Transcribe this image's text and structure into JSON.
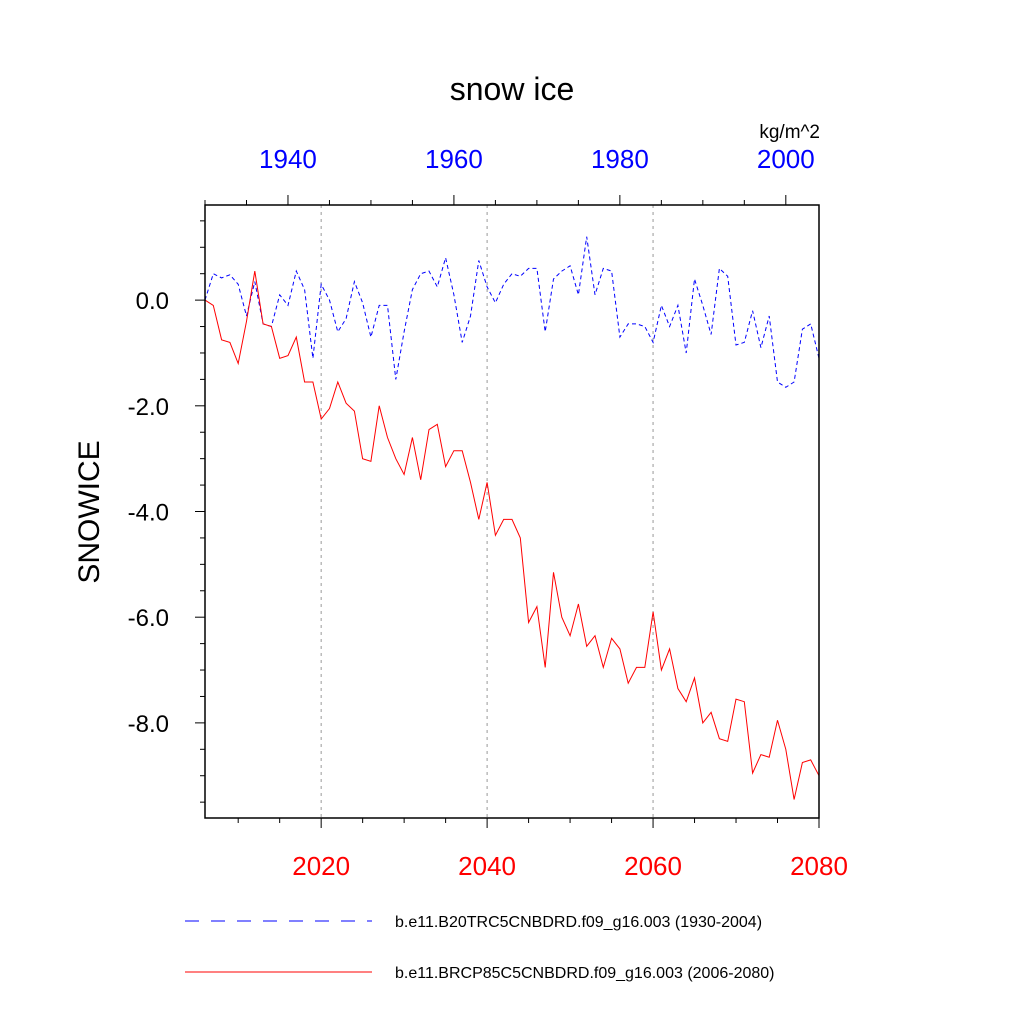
{
  "chart_data": {
    "type": "line",
    "title": "snow ice",
    "units": "kg/m^2",
    "ylabel": "SNOWICE",
    "ylim": [
      -9.8,
      1.8
    ],
    "y_ticks": [
      0,
      -2,
      -4,
      -6,
      -8
    ],
    "y_tick_labels": [
      "0.0",
      "-2.0",
      "-4.0",
      "-6.0",
      "-8.0"
    ],
    "y_minor_step": 0.5,
    "bottom_axis": {
      "range": [
        2006,
        2080
      ],
      "ticks": [
        2020,
        2040,
        2060,
        2080
      ],
      "tick_labels": [
        "2020",
        "2040",
        "2060",
        "2080"
      ],
      "minor_step": 5,
      "color": "#ff0000"
    },
    "top_axis": {
      "range": [
        1930,
        2004
      ],
      "ticks": [
        1940,
        1960,
        1980,
        2000
      ],
      "tick_labels": [
        "1940",
        "1960",
        "1980",
        "2000"
      ],
      "minor_step": 5,
      "color": "#0000ff"
    },
    "gridlines_x": [
      2020,
      2040,
      2060
    ],
    "series": [
      {
        "name": "b.e11.B20TRC5CNBDRD.f09_g16.003 (1930-2004)",
        "axis": "top",
        "color": "#0000ff",
        "dash": "dashed",
        "x": [
          1930,
          1931,
          1932,
          1933,
          1934,
          1935,
          1936,
          1937,
          1938,
          1939,
          1940,
          1941,
          1942,
          1943,
          1944,
          1945,
          1946,
          1947,
          1948,
          1949,
          1950,
          1951,
          1952,
          1953,
          1954,
          1955,
          1956,
          1957,
          1958,
          1959,
          1960,
          1961,
          1962,
          1963,
          1964,
          1965,
          1966,
          1967,
          1968,
          1969,
          1970,
          1971,
          1972,
          1973,
          1974,
          1975,
          1976,
          1977,
          1978,
          1979,
          1980,
          1981,
          1982,
          1983,
          1984,
          1985,
          1986,
          1987,
          1988,
          1989,
          1990,
          1991,
          1992,
          1993,
          1994,
          1995,
          1996,
          1997,
          1998,
          1999,
          2000,
          2001,
          2002,
          2003,
          2004
        ],
        "values": [
          0.0,
          0.5,
          0.42,
          0.48,
          0.3,
          -0.3,
          0.35,
          -0.45,
          -0.5,
          0.1,
          -0.1,
          0.55,
          0.2,
          -1.1,
          0.3,
          0.0,
          -0.6,
          -0.35,
          0.35,
          -0.05,
          -0.7,
          -0.1,
          -0.1,
          -1.5,
          -0.6,
          0.2,
          0.5,
          0.55,
          0.25,
          0.8,
          0.1,
          -0.8,
          -0.3,
          0.75,
          0.25,
          -0.05,
          0.3,
          0.5,
          0.45,
          0.6,
          0.6,
          -0.6,
          0.4,
          0.55,
          0.65,
          0.1,
          1.2,
          0.1,
          0.6,
          0.55,
          -0.7,
          -0.45,
          -0.45,
          -0.5,
          -0.8,
          -0.1,
          -0.5,
          -0.1,
          -1.0,
          0.4,
          -0.1,
          -0.65,
          0.6,
          0.45,
          -0.85,
          -0.8,
          -0.2,
          -0.9,
          -0.3,
          -1.55,
          -1.65,
          -1.55,
          -0.55,
          -0.45,
          -1.1
        ]
      },
      {
        "name": "b.e11.BRCP85C5CNBDRD.f09_g16.003 (2006-2080)",
        "axis": "bottom",
        "color": "#ff0000",
        "dash": "solid",
        "x": [
          2006,
          2007,
          2008,
          2009,
          2010,
          2011,
          2012,
          2013,
          2014,
          2015,
          2016,
          2017,
          2018,
          2019,
          2020,
          2021,
          2022,
          2023,
          2024,
          2025,
          2026,
          2027,
          2028,
          2029,
          2030,
          2031,
          2032,
          2033,
          2034,
          2035,
          2036,
          2037,
          2038,
          2039,
          2040,
          2041,
          2042,
          2043,
          2044,
          2045,
          2046,
          2047,
          2048,
          2049,
          2050,
          2051,
          2052,
          2053,
          2054,
          2055,
          2056,
          2057,
          2058,
          2059,
          2060,
          2061,
          2062,
          2063,
          2064,
          2065,
          2066,
          2067,
          2068,
          2069,
          2070,
          2071,
          2072,
          2073,
          2074,
          2075,
          2076,
          2077,
          2078,
          2079,
          2080
        ],
        "values": [
          0.0,
          -0.1,
          -0.75,
          -0.8,
          -1.2,
          -0.4,
          0.55,
          -0.45,
          -0.5,
          -1.1,
          -1.05,
          -0.7,
          -1.55,
          -1.55,
          -2.25,
          -2.05,
          -1.55,
          -1.95,
          -2.1,
          -3.0,
          -3.05,
          -2.0,
          -2.6,
          -3.0,
          -3.3,
          -2.6,
          -3.4,
          -2.45,
          -2.35,
          -3.15,
          -2.85,
          -2.85,
          -3.45,
          -4.15,
          -3.45,
          -4.45,
          -4.15,
          -4.15,
          -4.5,
          -6.1,
          -5.8,
          -6.95,
          -5.15,
          -6.0,
          -6.35,
          -5.75,
          -6.55,
          -6.35,
          -6.95,
          -6.4,
          -6.6,
          -7.25,
          -6.95,
          -6.95,
          -5.9,
          -7.0,
          -6.6,
          -7.35,
          -7.6,
          -7.15,
          -8.0,
          -7.8,
          -8.3,
          -8.35,
          -7.55,
          -7.6,
          -8.95,
          -8.6,
          -8.65,
          -7.95,
          -8.5,
          -9.45,
          -8.75,
          -8.7,
          -9.0
        ]
      }
    ],
    "legend_position": "bottom"
  }
}
